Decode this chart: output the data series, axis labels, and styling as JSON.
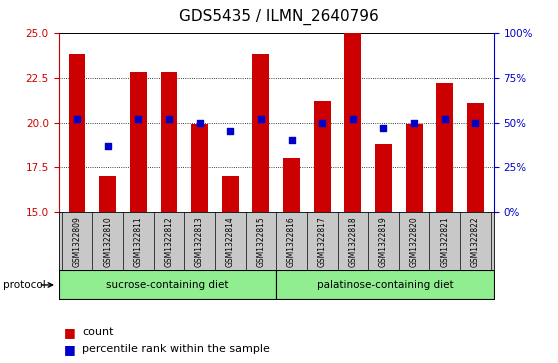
{
  "title": "GDS5435 / ILMN_2640796",
  "samples": [
    "GSM1322809",
    "GSM1322810",
    "GSM1322811",
    "GSM1322812",
    "GSM1322813",
    "GSM1322814",
    "GSM1322815",
    "GSM1322816",
    "GSM1322817",
    "GSM1322818",
    "GSM1322819",
    "GSM1322820",
    "GSM1322821",
    "GSM1322822"
  ],
  "counts": [
    23.8,
    17.0,
    22.8,
    22.8,
    19.9,
    17.0,
    23.8,
    18.0,
    21.2,
    25.0,
    18.8,
    19.9,
    22.2,
    21.1
  ],
  "percentile_ranks": [
    52,
    37,
    52,
    52,
    50,
    45,
    52,
    40,
    50,
    52,
    47,
    50,
    52,
    50
  ],
  "ylim_left": [
    15,
    25
  ],
  "ylim_right": [
    0,
    100
  ],
  "bar_color": "#cc0000",
  "dot_color": "#0000cc",
  "label_area_color": "#c8c8c8",
  "group_color": "#90ee90",
  "group1_label": "sucrose-containing diet",
  "group2_label": "palatinose-containing diet",
  "protocol_label": "protocol",
  "n_group1": 7,
  "n_group2": 7,
  "title_fontsize": 11,
  "tick_fontsize": 7.5,
  "sample_fontsize": 5.5,
  "group_fontsize": 7.5,
  "legend_fontsize": 8
}
